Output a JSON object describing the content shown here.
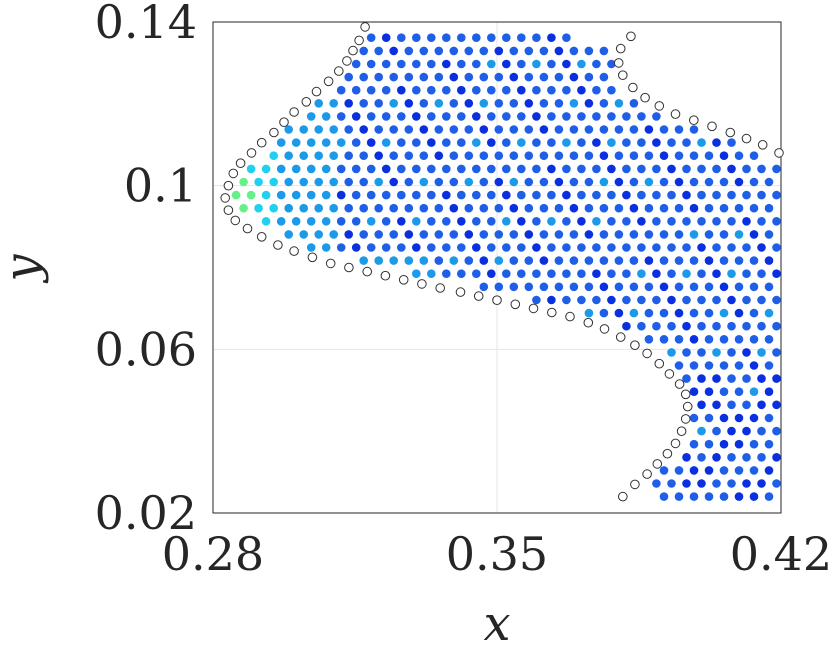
{
  "chart_data": {
    "type": "scatter",
    "title": "",
    "xlabel": "x",
    "ylabel": "y",
    "xlim": [
      0.28,
      0.42
    ],
    "ylim": [
      0.02,
      0.14
    ],
    "xticks": [
      0.28,
      0.35,
      0.42
    ],
    "yticks": [
      0.02,
      0.06,
      0.1,
      0.14
    ],
    "xtick_labels": [
      "0.28",
      "0.35",
      "0.42"
    ],
    "ytick_labels": [
      "0.02",
      "0.06",
      "0.1",
      "0.14"
    ],
    "grid": true,
    "legend": "none",
    "point_spacing": 0.0037,
    "colors": {
      "boundary_stroke": "#333333",
      "boundary_fill": "#ffffff",
      "interior_default": "#1f5fe8",
      "interior_light": "#1a9ae8",
      "interior_cyan": "#20d0f0",
      "interior_green": "#66f088",
      "interior_dark": "#0a2fe0"
    },
    "series": [
      {
        "name": "",
        "kind": "boundary",
        "points": [
          [
            0.3175,
            0.1388
          ],
          [
            0.316,
            0.1355
          ],
          [
            0.3145,
            0.133
          ],
          [
            0.313,
            0.1305
          ],
          [
            0.311,
            0.128
          ],
          [
            0.3085,
            0.1255
          ],
          [
            0.3055,
            0.123
          ],
          [
            0.303,
            0.1205
          ],
          [
            0.3,
            0.118
          ],
          [
            0.2975,
            0.1155
          ],
          [
            0.295,
            0.113
          ],
          [
            0.292,
            0.1105
          ],
          [
            0.2895,
            0.108
          ],
          [
            0.2868,
            0.1055
          ],
          [
            0.285,
            0.103
          ],
          [
            0.2838,
            0.1
          ],
          [
            0.283,
            0.097
          ],
          [
            0.2838,
            0.094
          ],
          [
            0.2855,
            0.0915
          ],
          [
            0.2885,
            0.0895
          ],
          [
            0.292,
            0.0875
          ],
          [
            0.296,
            0.0855
          ],
          [
            0.3,
            0.084
          ],
          [
            0.3045,
            0.0825
          ],
          [
            0.309,
            0.081
          ],
          [
            0.3135,
            0.08
          ],
          [
            0.318,
            0.079
          ],
          [
            0.3225,
            0.078
          ],
          [
            0.327,
            0.077
          ],
          [
            0.3315,
            0.076
          ],
          [
            0.336,
            0.075
          ],
          [
            0.341,
            0.074
          ],
          [
            0.3455,
            0.073
          ],
          [
            0.35,
            0.072
          ],
          [
            0.3545,
            0.071
          ],
          [
            0.359,
            0.07
          ],
          [
            0.3635,
            0.069
          ],
          [
            0.368,
            0.068
          ],
          [
            0.3725,
            0.0665
          ],
          [
            0.3765,
            0.065
          ],
          [
            0.3805,
            0.063
          ],
          [
            0.384,
            0.061
          ],
          [
            0.387,
            0.059
          ],
          [
            0.39,
            0.0565
          ],
          [
            0.3925,
            0.054
          ],
          [
            0.395,
            0.0515
          ],
          [
            0.3965,
            0.049
          ],
          [
            0.397,
            0.046
          ],
          [
            0.3965,
            0.043
          ],
          [
            0.3955,
            0.04
          ],
          [
            0.394,
            0.037
          ],
          [
            0.392,
            0.0345
          ],
          [
            0.3895,
            0.032
          ],
          [
            0.387,
            0.0295
          ],
          [
            0.384,
            0.027
          ],
          [
            0.381,
            0.024
          ],
          [
            0.383,
            0.1365
          ],
          [
            0.3805,
            0.1335
          ],
          [
            0.38,
            0.13
          ],
          [
            0.381,
            0.127
          ],
          [
            0.3835,
            0.124
          ],
          [
            0.3865,
            0.1215
          ],
          [
            0.39,
            0.1195
          ],
          [
            0.394,
            0.1175
          ],
          [
            0.3985,
            0.116
          ],
          [
            0.403,
            0.1145
          ],
          [
            0.4075,
            0.113
          ],
          [
            0.4115,
            0.1115
          ],
          [
            0.4155,
            0.11
          ],
          [
            0.4195,
            0.108
          ]
        ]
      }
    ]
  }
}
